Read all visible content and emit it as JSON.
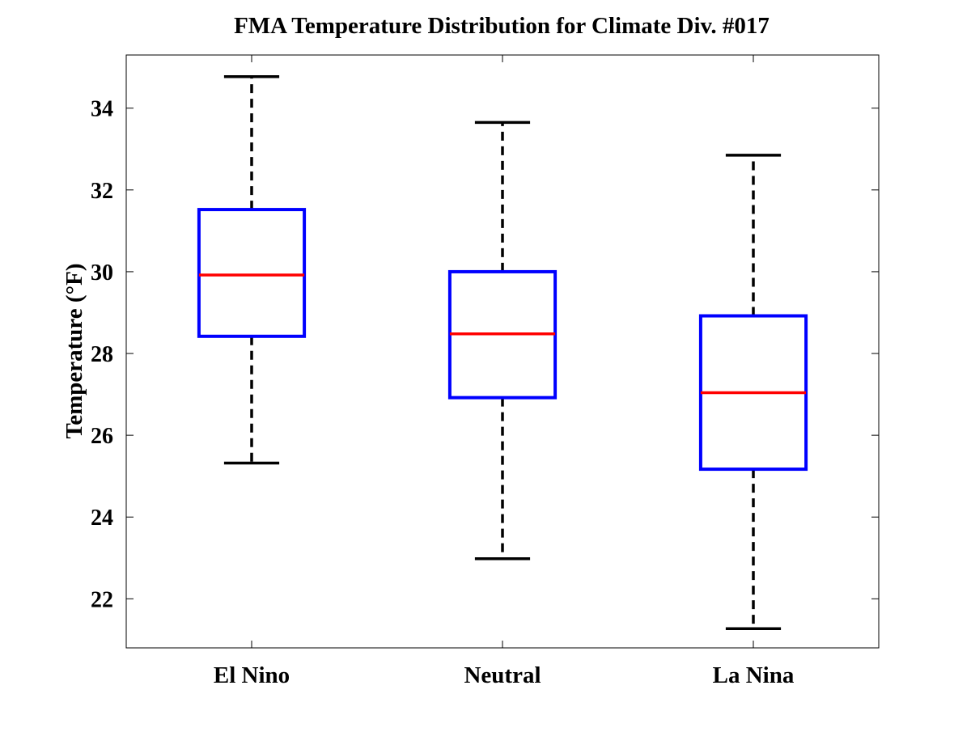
{
  "chart_data": {
    "type": "boxplot",
    "title": "FMA Temperature Distribution for Climate Div. #017",
    "xlabel": "",
    "ylabel": "Temperature (°F)",
    "ylim": [
      20.8,
      35.3
    ],
    "yticks": [
      22,
      24,
      26,
      28,
      30,
      32,
      34
    ],
    "ytick_labels": [
      "22",
      "24",
      "26",
      "28",
      "30",
      "32",
      "34"
    ],
    "categories": [
      "El Nino",
      "Neutral",
      "La Nina"
    ],
    "boxes": [
      {
        "name": "El Nino",
        "whisker_low": 25.32,
        "q1": 28.42,
        "median": 29.92,
        "q3": 31.52,
        "whisker_high": 34.77
      },
      {
        "name": "Neutral",
        "whisker_low": 22.98,
        "q1": 26.92,
        "median": 28.48,
        "q3": 30.0,
        "whisker_high": 33.65
      },
      {
        "name": "La Nina",
        "whisker_low": 21.27,
        "q1": 25.17,
        "median": 27.04,
        "q3": 28.92,
        "whisker_high": 32.85
      }
    ],
    "colors": {
      "box": "#0000ff",
      "median": "#ff0000",
      "whisker": "#000000",
      "axes": "#000000"
    },
    "grid": false
  }
}
